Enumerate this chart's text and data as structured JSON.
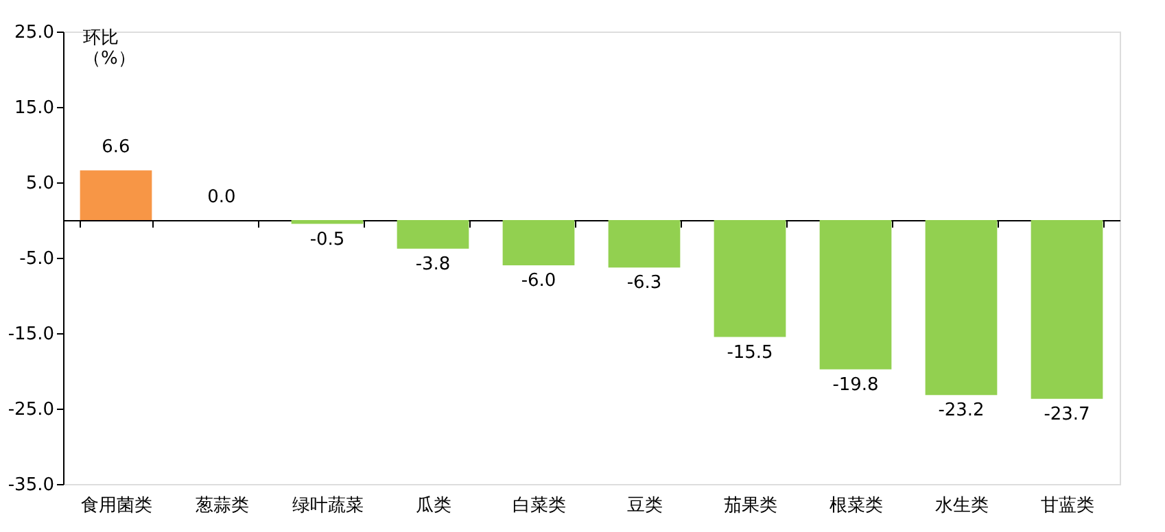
{
  "chart_data": {
    "type": "bar",
    "ylabel": "环比（%）",
    "categories": [
      "食用菌类",
      "葱蒜类",
      "绿叶蔬菜",
      "瓜类",
      "白菜类",
      "豆类",
      "茄果类",
      "根菜类",
      "水生类",
      "甘蓝类"
    ],
    "values": [
      6.6,
      0.0,
      -0.5,
      -3.8,
      -6.0,
      -6.3,
      -15.5,
      -19.8,
      -23.2,
      -23.7
    ],
    "value_labels": [
      "6.6",
      "0.0",
      "-0.5",
      "-3.8",
      "-6.0",
      "-6.3",
      "-15.5",
      "-19.8",
      "-23.2",
      "-23.7"
    ],
    "colors": [
      "#f79646",
      "#92d050",
      "#92d050",
      "#92d050",
      "#92d050",
      "#92d050",
      "#92d050",
      "#92d050",
      "#92d050",
      "#92d050"
    ],
    "ylim": [
      -35,
      25
    ],
    "yticks": [
      {
        "value": 25,
        "label": "25.0"
      },
      {
        "value": 15,
        "label": "15.0"
      },
      {
        "value": 5,
        "label": "5.0"
      },
      {
        "value": -5,
        "label": "-5.0"
      },
      {
        "value": -15,
        "label": "-15.0"
      },
      {
        "value": -25,
        "label": "-25.0"
      },
      {
        "value": -35,
        "label": "-35.0"
      }
    ],
    "grid": false
  }
}
